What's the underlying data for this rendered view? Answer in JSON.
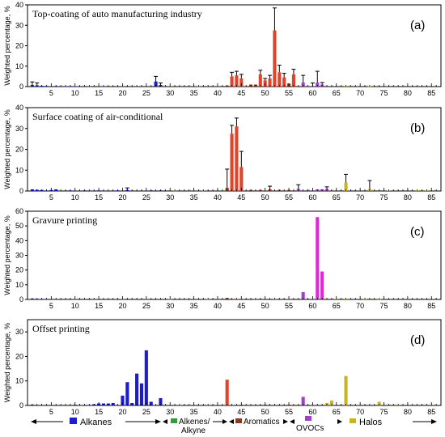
{
  "chart_data": [
    {
      "type": "bar",
      "panel_label": "(a)",
      "title": "Top-coating of auto manufacturing industry",
      "ylabel": "Weighted percentage, %",
      "ylim": [
        0,
        40
      ],
      "yticks": [
        0,
        10,
        20,
        30,
        40
      ],
      "xlim": [
        0,
        87
      ],
      "xticks": [
        5,
        10,
        15,
        20,
        25,
        30,
        35,
        40,
        45,
        50,
        55,
        60,
        65,
        70,
        75,
        80,
        85
      ],
      "bars": [
        {
          "x": 1,
          "y": 0.8,
          "err": 1.5,
          "g": "Alkanes"
        },
        {
          "x": 2,
          "y": 0.6,
          "err": 1.2,
          "g": "Alkanes"
        },
        {
          "x": 3,
          "y": 0.4,
          "g": "Alkanes"
        },
        {
          "x": 4,
          "y": 0.3,
          "g": "Alkanes"
        },
        {
          "x": 6,
          "y": 0.3,
          "g": "Alkanes"
        },
        {
          "x": 8,
          "y": 0.2,
          "g": "Alkanes"
        },
        {
          "x": 10,
          "y": 0.2,
          "g": "Alkanes"
        },
        {
          "x": 13,
          "y": 0.2,
          "g": "Alkanes"
        },
        {
          "x": 16,
          "y": 0.2,
          "g": "Alkanes"
        },
        {
          "x": 20,
          "y": 0.2,
          "g": "Alkanes"
        },
        {
          "x": 23,
          "y": 0.2,
          "g": "Alkanes"
        },
        {
          "x": 27,
          "y": 2.5,
          "err": 2.5,
          "g": "Alkanes"
        },
        {
          "x": 28,
          "y": 0.8,
          "err": 1.0,
          "g": "Alkanes"
        },
        {
          "x": 30,
          "y": 0.3,
          "g": "Alkenes/Alkyne"
        },
        {
          "x": 36,
          "y": 0.2,
          "g": "Alkenes/Alkyne"
        },
        {
          "x": 40,
          "y": 0.3,
          "g": "Alkenes/Alkyne"
        },
        {
          "x": 42,
          "y": 0.5,
          "g": "Aromatics"
        },
        {
          "x": 43,
          "y": 5.0,
          "err": 2.0,
          "g": "Aromatics"
        },
        {
          "x": 44,
          "y": 5.5,
          "err": 2.0,
          "g": "Aromatics"
        },
        {
          "x": 45,
          "y": 4.0,
          "err": 2.0,
          "g": "Aromatics"
        },
        {
          "x": 47,
          "y": 1.0,
          "g": "Aromatics"
        },
        {
          "x": 48,
          "y": 1.0,
          "g": "Aromatics"
        },
        {
          "x": 49,
          "y": 6.0,
          "err": 2.0,
          "g": "Aromatics"
        },
        {
          "x": 50,
          "y": 3.0,
          "err": 1.0,
          "g": "Aromatics"
        },
        {
          "x": 51,
          "y": 4.0,
          "err": 1.5,
          "g": "Aromatics"
        },
        {
          "x": 52,
          "y": 27.5,
          "err": 11.0,
          "g": "Aromatics"
        },
        {
          "x": 53,
          "y": 7.0,
          "err": 3.5,
          "g": "Aromatics"
        },
        {
          "x": 54,
          "y": 4.5,
          "err": 2.0,
          "g": "Aromatics"
        },
        {
          "x": 55,
          "y": 1.5,
          "g": "Aromatics"
        },
        {
          "x": 56,
          "y": 6.0,
          "err": 2.5,
          "g": "Aromatics"
        },
        {
          "x": 58,
          "y": 2.0,
          "err": 3.5,
          "g": "OVOCs"
        },
        {
          "x": 60,
          "y": 0.3,
          "err": 1.5,
          "g": "OVOCs"
        },
        {
          "x": 61,
          "y": 2.0,
          "err": 5.5,
          "g": "OVOCs"
        },
        {
          "x": 62,
          "y": 1.0,
          "err": 1.0,
          "g": "OVOCs"
        },
        {
          "x": 67,
          "y": 0.3,
          "g": "Halos"
        },
        {
          "x": 72,
          "y": 0.2,
          "g": "Halos"
        }
      ]
    },
    {
      "type": "bar",
      "panel_label": "(b)",
      "title": "Surface coating of air-conditional",
      "ylabel": "Weighted percentage, %",
      "ylim": [
        0,
        40
      ],
      "yticks": [
        0,
        10,
        20,
        30,
        40
      ],
      "xlim": [
        0,
        87
      ],
      "xticks": [
        5,
        10,
        15,
        20,
        25,
        30,
        35,
        40,
        45,
        50,
        55,
        60,
        65,
        70,
        75,
        80,
        85
      ],
      "bars": [
        {
          "x": 1,
          "y": 0.8,
          "g": "Alkanes"
        },
        {
          "x": 2,
          "y": 0.6,
          "g": "Alkanes"
        },
        {
          "x": 3,
          "y": 0.5,
          "g": "Alkanes"
        },
        {
          "x": 5,
          "y": 0.5,
          "g": "Alkanes"
        },
        {
          "x": 6,
          "y": 0.8,
          "g": "Alkanes"
        },
        {
          "x": 9,
          "y": 0.3,
          "g": "Alkanes"
        },
        {
          "x": 12,
          "y": 0.3,
          "g": "Alkanes"
        },
        {
          "x": 15,
          "y": 0.3,
          "g": "Alkanes"
        },
        {
          "x": 19,
          "y": 0.3,
          "g": "Alkanes"
        },
        {
          "x": 21,
          "y": 0.5,
          "err": 1.0,
          "g": "Alkanes"
        },
        {
          "x": 26,
          "y": 0.3,
          "g": "Alkanes"
        },
        {
          "x": 28,
          "y": 0.3,
          "g": "Alkanes"
        },
        {
          "x": 31,
          "y": 0.2,
          "g": "Alkenes/Alkyne"
        },
        {
          "x": 37,
          "y": 0.2,
          "g": "Alkenes/Alkyne"
        },
        {
          "x": 41,
          "y": 0.3,
          "g": "Alkenes/Alkyne"
        },
        {
          "x": 42,
          "y": 1.5,
          "err": 9.0,
          "g": "Aromatics"
        },
        {
          "x": 43,
          "y": 27.5,
          "err": 4.0,
          "g": "Aromatics"
        },
        {
          "x": 44,
          "y": 31.0,
          "err": 4.0,
          "g": "Aromatics"
        },
        {
          "x": 45,
          "y": 11.5,
          "err": 7.5,
          "g": "Aromatics"
        },
        {
          "x": 47,
          "y": 0.5,
          "g": "Aromatics"
        },
        {
          "x": 49,
          "y": 0.5,
          "g": "Aromatics"
        },
        {
          "x": 51,
          "y": 0.8,
          "err": 1.5,
          "g": "Aromatics"
        },
        {
          "x": 53,
          "y": 0.5,
          "g": "Aromatics"
        },
        {
          "x": 55,
          "y": 0.5,
          "g": "Aromatics"
        },
        {
          "x": 57,
          "y": 1.0,
          "err": 2.0,
          "g": "OVOCs"
        },
        {
          "x": 59,
          "y": 0.5,
          "g": "OVOCs"
        },
        {
          "x": 61,
          "y": 0.8,
          "g": "OVOCs"
        },
        {
          "x": 62,
          "y": 0.8,
          "g": "OVOCs"
        },
        {
          "x": 63,
          "y": 1.0,
          "err": 1.0,
          "g": "OVOCs"
        },
        {
          "x": 67,
          "y": 4.0,
          "err": 4.0,
          "g": "Halos"
        },
        {
          "x": 72,
          "y": 1.0,
          "err": 4.0,
          "g": "Halos"
        },
        {
          "x": 76,
          "y": 0.3,
          "g": "Halos"
        },
        {
          "x": 82,
          "y": 0.3,
          "g": "Halos"
        },
        {
          "x": 84,
          "y": 0.3,
          "g": "Halos"
        }
      ]
    },
    {
      "type": "bar",
      "panel_label": "(c)",
      "title": "Gravure printing",
      "ylabel": "Weighted percentage, %",
      "ylim": [
        0,
        60
      ],
      "yticks": [
        0,
        10,
        20,
        30,
        40,
        50,
        60
      ],
      "xlim": [
        0,
        87
      ],
      "xticks": [
        5,
        10,
        15,
        20,
        25,
        30,
        35,
        40,
        45,
        50,
        55,
        60,
        65,
        70,
        75,
        80,
        85
      ],
      "bars": [
        {
          "x": 1,
          "y": 0.5,
          "g": "Alkanes"
        },
        {
          "x": 2,
          "y": 0.4,
          "g": "Alkanes"
        },
        {
          "x": 4,
          "y": 0.3,
          "g": "Alkanes"
        },
        {
          "x": 6,
          "y": 0.3,
          "g": "Alkanes"
        },
        {
          "x": 10,
          "y": 0.2,
          "g": "Alkanes"
        },
        {
          "x": 14,
          "y": 0.2,
          "g": "Alkanes"
        },
        {
          "x": 20,
          "y": 0.2,
          "g": "Alkanes"
        },
        {
          "x": 25,
          "y": 0.2,
          "g": "Alkanes"
        },
        {
          "x": 30,
          "y": 0.2,
          "g": "Alkenes/Alkyne"
        },
        {
          "x": 38,
          "y": 0.2,
          "g": "Alkenes/Alkyne"
        },
        {
          "x": 42,
          "y": 1.0,
          "g": "Aromatics"
        },
        {
          "x": 44,
          "y": 0.3,
          "g": "Aromatics"
        },
        {
          "x": 48,
          "y": 0.3,
          "g": "Aromatics"
        },
        {
          "x": 52,
          "y": 0.3,
          "g": "Aromatics"
        },
        {
          "x": 55,
          "y": 0.3,
          "g": "Aromatics"
        },
        {
          "x": 58,
          "y": 5.0,
          "g": "OVOCs"
        },
        {
          "x": 61,
          "y": 56.0,
          "g": "OVOCs"
        },
        {
          "x": 62,
          "y": 19.0,
          "g": "OVOCs"
        },
        {
          "x": 65,
          "y": 0.5,
          "g": "Halos"
        },
        {
          "x": 67,
          "y": 0.5,
          "g": "Halos"
        },
        {
          "x": 71,
          "y": 0.3,
          "g": "Halos"
        },
        {
          "x": 74,
          "y": 0.3,
          "g": "Halos"
        }
      ]
    },
    {
      "type": "bar",
      "panel_label": "(d)",
      "title": "Offset printing",
      "ylabel": "Weighted percentage, %",
      "ylim": [
        0,
        35
      ],
      "yticks": [
        0,
        10,
        20,
        30
      ],
      "xlim": [
        0,
        87
      ],
      "xticks": [
        5,
        10,
        15,
        20,
        25,
        30,
        35,
        40,
        45,
        50,
        55,
        60,
        65,
        70,
        75,
        80,
        85
      ],
      "bars": [
        {
          "x": 1,
          "y": 0.3,
          "g": "Alkanes"
        },
        {
          "x": 10,
          "y": 0.3,
          "g": "Alkanes"
        },
        {
          "x": 14,
          "y": 0.5,
          "g": "Alkanes"
        },
        {
          "x": 15,
          "y": 0.8,
          "g": "Alkanes"
        },
        {
          "x": 16,
          "y": 0.8,
          "g": "Alkanes"
        },
        {
          "x": 17,
          "y": 0.8,
          "g": "Alkanes"
        },
        {
          "x": 18,
          "y": 1.0,
          "g": "Alkanes"
        },
        {
          "x": 20,
          "y": 4.0,
          "g": "Alkanes"
        },
        {
          "x": 21,
          "y": 9.5,
          "g": "Alkanes"
        },
        {
          "x": 22,
          "y": 1.0,
          "g": "Alkanes"
        },
        {
          "x": 23,
          "y": 13.0,
          "g": "Alkanes"
        },
        {
          "x": 24,
          "y": 9.0,
          "g": "Alkanes"
        },
        {
          "x": 25,
          "y": 22.5,
          "g": "Alkanes"
        },
        {
          "x": 26,
          "y": 1.5,
          "g": "Alkanes"
        },
        {
          "x": 28,
          "y": 3.0,
          "g": "Alkanes"
        },
        {
          "x": 32,
          "y": 0.2,
          "g": "Alkenes/Alkyne"
        },
        {
          "x": 38,
          "y": 0.2,
          "g": "Alkenes/Alkyne"
        },
        {
          "x": 42,
          "y": 10.5,
          "g": "Aromatics"
        },
        {
          "x": 45,
          "y": 0.3,
          "g": "Aromatics"
        },
        {
          "x": 50,
          "y": 0.3,
          "g": "Aromatics"
        },
        {
          "x": 55,
          "y": 0.3,
          "g": "Aromatics"
        },
        {
          "x": 58,
          "y": 3.5,
          "g": "OVOCs"
        },
        {
          "x": 63,
          "y": 1.0,
          "g": "Halos"
        },
        {
          "x": 64,
          "y": 2.0,
          "g": "Halos"
        },
        {
          "x": 67,
          "y": 12.0,
          "g": "Halos"
        },
        {
          "x": 74,
          "y": 1.5,
          "g": "Halos"
        },
        {
          "x": 78,
          "y": 0.3,
          "g": "Halos"
        }
      ]
    }
  ],
  "group_colors": {
    "Alkanes": "#1c1ccc",
    "Alkenes/Alkyne": "#2e9e3a",
    "Aromatics": "#8b3a1e",
    "Aromatics_highlight": "#e0442a",
    "OVOCs": "#a040c8",
    "OVOCs_highlight": "#e028d8",
    "Halos": "#c8b420"
  },
  "legend": {
    "alkanes": "Alkanes",
    "alkenes_line1": "Alkenes/",
    "alkenes_line2": "Alkyne",
    "aromatics": "Aromatics",
    "ovocs": "OVOCs",
    "halos": "Halos"
  }
}
